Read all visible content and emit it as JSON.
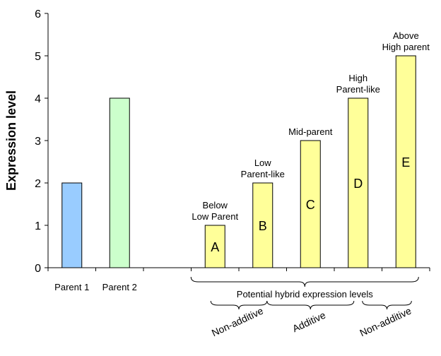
{
  "chart_data": {
    "type": "bar",
    "title": "",
    "xlabel": "",
    "ylabel": "Expression level",
    "ylim": [
      0,
      6
    ],
    "yticks": [
      0,
      1,
      2,
      3,
      4,
      5,
      6
    ],
    "grid": false,
    "legend": "none",
    "categories": [
      "Parent 1",
      "Parent 2",
      "",
      "",
      "",
      "",
      ""
    ],
    "bars": [
      {
        "category": "Parent 1",
        "value": 2,
        "color": "#99ccff"
      },
      {
        "category": "Parent 2",
        "value": 4,
        "color": "#ccffcc"
      },
      {
        "letter": "A",
        "annotation": [
          "Below",
          "Low Parent"
        ],
        "value": 1,
        "color": "#ffff99"
      },
      {
        "letter": "B",
        "annotation": [
          "Low",
          "Parent-like"
        ],
        "value": 2,
        "color": "#ffff99"
      },
      {
        "letter": "C",
        "annotation": [
          "Mid-parent"
        ],
        "value": 3,
        "color": "#ffff99"
      },
      {
        "letter": "D",
        "annotation": [
          "High",
          "Parent-like"
        ],
        "value": 4,
        "color": "#ffff99"
      },
      {
        "letter": "E",
        "annotation": [
          "Above",
          "High parent"
        ],
        "value": 5,
        "color": "#ffff99"
      }
    ],
    "group_label": "Potential hybrid expression levels",
    "subgroups": [
      {
        "label": "Non-additive",
        "bars": [
          "A",
          "B"
        ]
      },
      {
        "label": "Additive",
        "bars": [
          "B",
          "C",
          "D"
        ]
      },
      {
        "label": "Non-additive",
        "bars": [
          "D",
          "E"
        ]
      }
    ]
  }
}
